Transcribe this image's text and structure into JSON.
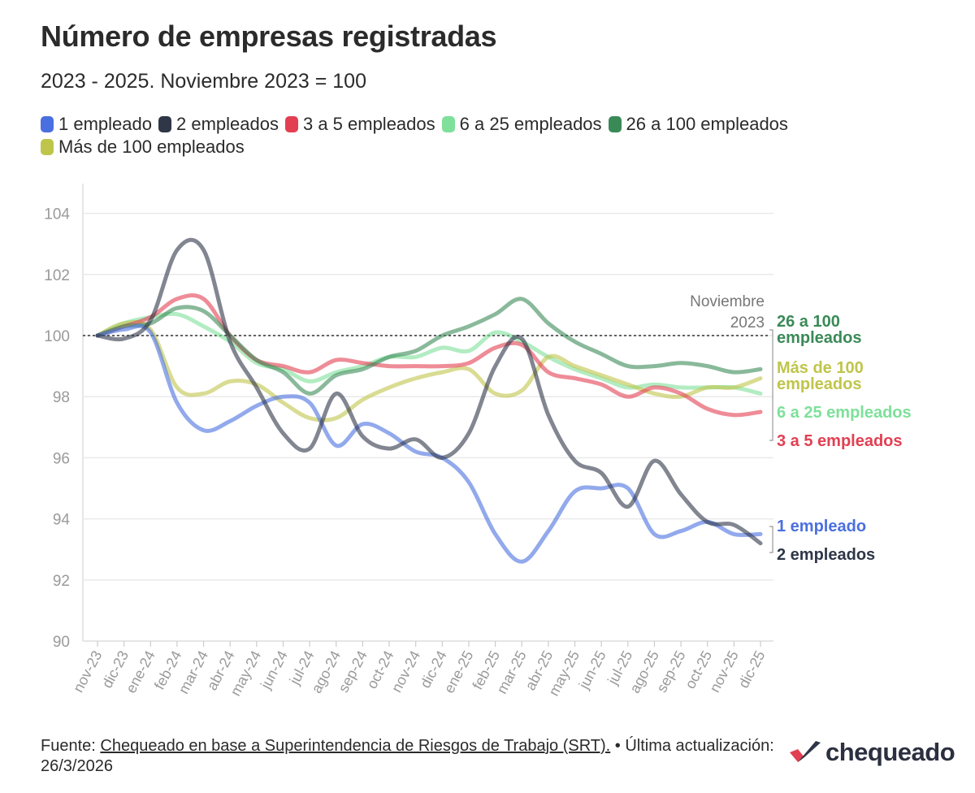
{
  "title": "Número de empresas registradas",
  "subtitle": "2023 - 2025. Noviembre 2023 = 100",
  "footer": {
    "source_prefix": "Fuente: ",
    "source_link": "Chequeado en base a Superintendencia de Riesgos de Trabajo (SRT).",
    "update": " • Última actualización: 26/3/2026"
  },
  "logo": {
    "text": "chequeado"
  },
  "reference_label": [
    "Noviembre",
    "2023"
  ],
  "chart_data": {
    "type": "line",
    "title": "Número de empresas registradas",
    "subtitle": "2023 - 2025. Noviembre 2023 = 100",
    "x": [
      "nov-23",
      "dic-23",
      "ene-24",
      "feb-24",
      "mar-24",
      "abr-24",
      "may-24",
      "jun-24",
      "jul-24",
      "ago-24",
      "sep-24",
      "oct-24",
      "nov-24",
      "dic-24",
      "ene-25",
      "feb-25",
      "mar-25",
      "abr-25",
      "may-25",
      "jun-25",
      "jul-25",
      "ago-25",
      "sep-25",
      "oct-25",
      "nov-25",
      "dic-25"
    ],
    "ylim": [
      90,
      104
    ],
    "yticks": [
      90,
      92,
      94,
      96,
      98,
      100,
      102,
      104
    ],
    "reference_line": 100,
    "grid": true,
    "legend": "top",
    "series": [
      {
        "name": "1 empleado",
        "color": "#4a6fe0",
        "end_label": [
          "1 empleado"
        ],
        "values": [
          100,
          100.2,
          100.1,
          97.8,
          96.9,
          97.2,
          97.7,
          98.0,
          97.8,
          96.4,
          97.1,
          96.8,
          96.2,
          96.0,
          95.2,
          93.5,
          92.6,
          93.6,
          94.9,
          95.0,
          95.0,
          93.5,
          93.6,
          93.9,
          93.5,
          93.5
        ]
      },
      {
        "name": "2 empleados",
        "color": "#2e3648",
        "end_label": [
          "2 empleados"
        ],
        "values": [
          100,
          99.9,
          100.5,
          102.8,
          102.8,
          99.8,
          98.3,
          96.8,
          96.3,
          98.1,
          96.7,
          96.3,
          96.6,
          96.0,
          96.8,
          99.0,
          99.9,
          97.4,
          95.9,
          95.5,
          94.4,
          95.9,
          94.8,
          93.9,
          93.8,
          93.2
        ]
      },
      {
        "name": "3 a 5 empleados",
        "color": "#e23f52",
        "end_label": [
          "3 a 5 empleados"
        ],
        "values": [
          100,
          100.3,
          100.6,
          101.2,
          101.2,
          100.0,
          99.2,
          99.0,
          98.8,
          99.2,
          99.1,
          99.0,
          99.0,
          99.0,
          99.1,
          99.6,
          99.7,
          98.8,
          98.6,
          98.4,
          98.0,
          98.3,
          98.1,
          97.6,
          97.4,
          97.5
        ]
      },
      {
        "name": "6 a 25 empleados",
        "color": "#7ee09a",
        "end_label": [
          "6 a 25 empleados"
        ],
        "values": [
          100,
          100.4,
          100.6,
          100.7,
          100.3,
          99.8,
          99.1,
          98.9,
          98.5,
          98.8,
          99.0,
          99.3,
          99.3,
          99.6,
          99.5,
          100.1,
          99.8,
          99.3,
          98.9,
          98.6,
          98.3,
          98.4,
          98.3,
          98.3,
          98.3,
          98.1
        ]
      },
      {
        "name": "26 a 100 empleados",
        "color": "#3a8a57",
        "end_label": [
          "26 a 100",
          "empleados"
        ],
        "values": [
          100,
          100.3,
          100.4,
          100.9,
          100.8,
          100.0,
          99.2,
          98.8,
          98.1,
          98.7,
          98.9,
          99.3,
          99.5,
          100.0,
          100.3,
          100.7,
          101.2,
          100.4,
          99.8,
          99.4,
          99.0,
          99.0,
          99.1,
          99.0,
          98.8,
          98.9
        ]
      },
      {
        "name": "Más de 100 empleados",
        "color": "#bfc54a",
        "end_label": [
          "Más de 100",
          "empleados"
        ],
        "values": [
          100,
          100.4,
          100.2,
          98.3,
          98.1,
          98.5,
          98.4,
          97.8,
          97.3,
          97.3,
          97.9,
          98.3,
          98.6,
          98.8,
          98.9,
          98.1,
          98.2,
          99.3,
          99.0,
          98.7,
          98.4,
          98.1,
          98.0,
          98.3,
          98.3,
          98.6
        ]
      }
    ]
  }
}
